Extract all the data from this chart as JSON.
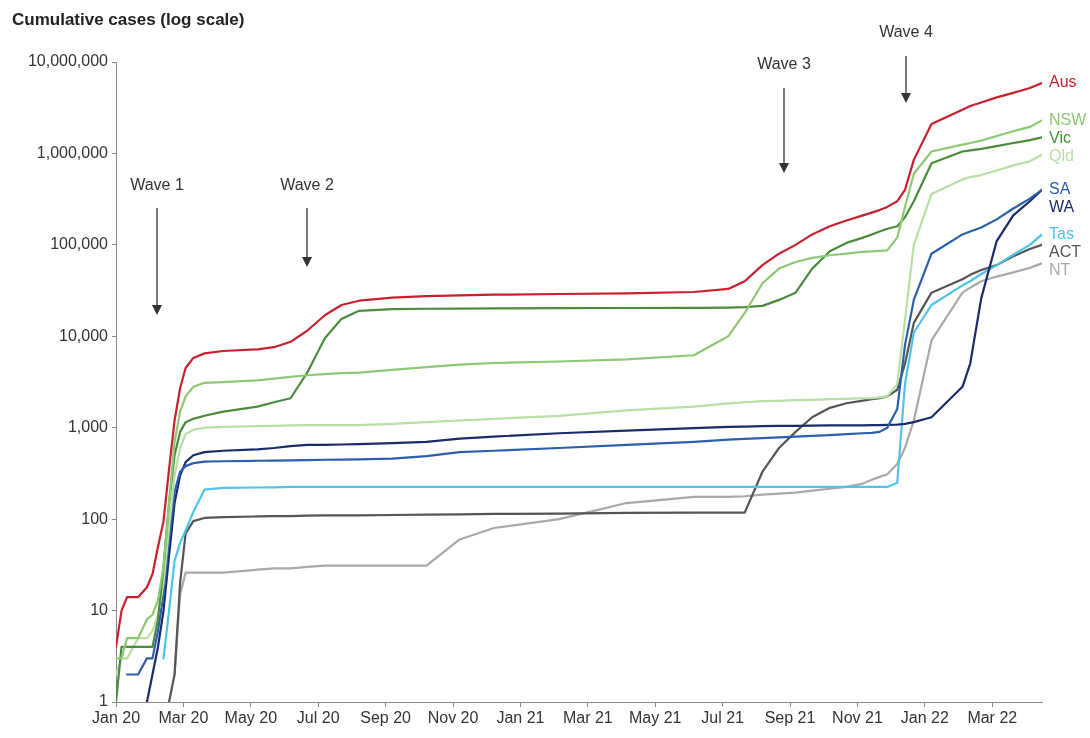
{
  "chart_data": {
    "type": "line",
    "title": "Cumulative cases (log scale)",
    "log": "y",
    "grid": false,
    "x": [
      "2020-01-25",
      "2020-01-30",
      "2020-02-04",
      "2020-02-14",
      "2020-02-22",
      "2020-02-27",
      "2020-03-03",
      "2020-03-08",
      "2020-03-13",
      "2020-03-18",
      "2020-03-23",
      "2020-03-28",
      "2020-04-04",
      "2020-04-14",
      "2020-05-01",
      "2020-06-01",
      "2020-06-16",
      "2020-07-01",
      "2020-07-16",
      "2020-08-01",
      "2020-08-16",
      "2020-09-01",
      "2020-10-01",
      "2020-11-01",
      "2020-12-01",
      "2021-01-01",
      "2021-03-01",
      "2021-05-01",
      "2021-07-01",
      "2021-08-01",
      "2021-08-16",
      "2021-09-01",
      "2021-09-16",
      "2021-10-01",
      "2021-10-16",
      "2021-11-01",
      "2021-11-16",
      "2021-12-01",
      "2021-12-09",
      "2021-12-16",
      "2021-12-23",
      "2022-01-01",
      "2022-01-08",
      "2022-01-16",
      "2022-02-01",
      "2022-03-01",
      "2022-03-08",
      "2022-03-18",
      "2022-04-01",
      "2022-04-16",
      "2022-05-01",
      "2022-05-12"
    ],
    "xlim": [
      "2020-01-25",
      "2022-05-12"
    ],
    "xticks": [
      {
        "value": "2020-01-25",
        "label": "Jan 20"
      },
      {
        "value": "2020-03-26",
        "label": "Mar 20"
      },
      {
        "value": "2020-05-26",
        "label": "May 20"
      },
      {
        "value": "2020-07-26",
        "label": "Jul 20"
      },
      {
        "value": "2020-09-25",
        "label": "Sep 20"
      },
      {
        "value": "2020-11-25",
        "label": "Nov 20"
      },
      {
        "value": "2021-01-25",
        "label": "Jan 21"
      },
      {
        "value": "2021-03-27",
        "label": "Mar 21"
      },
      {
        "value": "2021-05-27",
        "label": "May 21"
      },
      {
        "value": "2021-07-27",
        "label": "Jul 21"
      },
      {
        "value": "2021-09-26",
        "label": "Sep 21"
      },
      {
        "value": "2021-11-26",
        "label": "Nov 21"
      },
      {
        "value": "2022-01-26",
        "label": "Jan 22"
      },
      {
        "value": "2022-03-28",
        "label": "Mar 22"
      }
    ],
    "ylim": [
      1,
      10000000
    ],
    "yticks": [
      1,
      10,
      100,
      {
        "value": 1000,
        "label": "1,000"
      },
      {
        "value": 10000,
        "label": "10,000"
      },
      {
        "value": 100000,
        "label": "100,000"
      },
      {
        "value": 1000000,
        "label": "1,000,000"
      },
      {
        "value": 10000000,
        "label": "10,000,000"
      }
    ],
    "series": [
      {
        "name": "Aus",
        "color": "#c8202f",
        "values": [
          4,
          10,
          14,
          14,
          18,
          25,
          50,
          95,
          350,
          1200,
          2700,
          4500,
          5800,
          6500,
          6900,
          7200,
          7600,
          8700,
          11500,
          17000,
          22000,
          24500,
          26500,
          27500,
          28000,
          28500,
          29000,
          29500,
          30500,
          33000,
          40000,
          60000,
          80000,
          100000,
          130000,
          160000,
          185000,
          210000,
          225000,
          240000,
          260000,
          300000,
          400000,
          850000,
          2100000,
          3000000,
          3300000,
          3600000,
          4100000,
          4600000,
          5200000,
          5900000
        ]
      },
      {
        "name": "NSW",
        "color": "#8dc875",
        "values": [
          3,
          3,
          5,
          5,
          8,
          9,
          13,
          30,
          150,
          700,
          1500,
          2200,
          2800,
          3100,
          3150,
          3300,
          3450,
          3600,
          3750,
          3850,
          3950,
          4000,
          4300,
          4600,
          4900,
          5100,
          5300,
          5600,
          6200,
          10000,
          18000,
          38000,
          55000,
          65000,
          72000,
          77000,
          80000,
          84000,
          85000,
          86000,
          87000,
          120000,
          260000,
          600000,
          1050000,
          1250000,
          1300000,
          1380000,
          1550000,
          1750000,
          1950000,
          2300000
        ]
      },
      {
        "name": "Vic",
        "color": "#4a8c3c",
        "values": [
          1,
          4,
          4,
          4,
          4,
          4,
          8,
          30,
          150,
          500,
          900,
          1150,
          1250,
          1350,
          1500,
          1700,
          1900,
          2100,
          4000,
          9500,
          15500,
          19000,
          19800,
          20000,
          20100,
          20200,
          20300,
          20400,
          20500,
          20600,
          20800,
          21500,
          25000,
          30000,
          55000,
          85000,
          105000,
          120000,
          130000,
          140000,
          150000,
          160000,
          200000,
          300000,
          780000,
          1050000,
          1080000,
          1120000,
          1200000,
          1300000,
          1400000,
          1500000
        ]
      },
      {
        "name": "Qld",
        "color": "#b9dfa5",
        "values": [
          2,
          3,
          3,
          5,
          5,
          6,
          9,
          20,
          80,
          300,
          600,
          850,
          950,
          1000,
          1020,
          1040,
          1050,
          1060,
          1065,
          1070,
          1070,
          1070,
          1100,
          1150,
          1200,
          1250,
          1350,
          1550,
          1700,
          1850,
          1900,
          1950,
          1970,
          2000,
          2020,
          2050,
          2070,
          2100,
          2100,
          2150,
          2200,
          3000,
          15000,
          100000,
          360000,
          520000,
          550000,
          580000,
          650000,
          740000,
          820000,
          970000
        ]
      },
      {
        "name": "SA",
        "color": "#2b5fad",
        "values": [
          null,
          null,
          2,
          2,
          3,
          3,
          6,
          15,
          60,
          200,
          330,
          380,
          410,
          425,
          430,
          435,
          437,
          440,
          443,
          446,
          448,
          450,
          460,
          490,
          540,
          560,
          600,
          650,
          700,
          740,
          755,
          770,
          785,
          800,
          815,
          830,
          850,
          870,
          880,
          900,
          1000,
          1600,
          8000,
          25000,
          80000,
          130000,
          140000,
          155000,
          190000,
          250000,
          320000,
          400000
        ]
      },
      {
        "name": "WA",
        "color": "#1b2a6b",
        "values": [
          null,
          null,
          null,
          null,
          1,
          2,
          4,
          10,
          40,
          150,
          300,
          420,
          500,
          540,
          560,
          580,
          600,
          630,
          650,
          650,
          655,
          660,
          680,
          700,
          760,
          800,
          870,
          930,
          990,
          1020,
          1030,
          1040,
          1045,
          1050,
          1055,
          1060,
          1060,
          1060,
          1065,
          1070,
          1075,
          1080,
          1100,
          1150,
          1300,
          2800,
          5000,
          26000,
          110000,
          210000,
          300000,
          400000
        ]
      },
      {
        "name": "Tas",
        "color": "#4fc3e8",
        "values": [
          null,
          null,
          null,
          null,
          null,
          null,
          null,
          3,
          10,
          35,
          55,
          75,
          120,
          210,
          220,
          222,
          223,
          225,
          225,
          225,
          225,
          225,
          225,
          225,
          225,
          225,
          225,
          225,
          225,
          225,
          225,
          225,
          225,
          225,
          225,
          225,
          225,
          225,
          225,
          225,
          225,
          250,
          3000,
          11000,
          22000,
          36000,
          40000,
          48000,
          60000,
          78000,
          100000,
          130000
        ]
      },
      {
        "name": "ACT",
        "color": "#555555",
        "values": [
          null,
          null,
          null,
          null,
          null,
          null,
          null,
          null,
          1,
          2,
          20,
          70,
          95,
          103,
          105,
          107,
          108,
          108,
          109,
          110,
          110,
          110,
          111,
          112,
          113,
          114,
          115,
          117,
          118,
          118,
          118,
          330,
          600,
          900,
          1300,
          1650,
          1850,
          1980,
          2050,
          2100,
          2200,
          2600,
          5000,
          14000,
          30000,
          42000,
          47000,
          53000,
          60000,
          75000,
          90000,
          100000
        ]
      },
      {
        "name": "NT",
        "color": "#a9a9a9",
        "values": [
          null,
          null,
          null,
          null,
          null,
          null,
          null,
          null,
          null,
          2,
          15,
          26,
          26,
          26,
          26,
          28,
          29,
          29,
          30,
          31,
          31,
          31,
          31,
          31,
          60,
          80,
          100,
          150,
          175,
          175,
          178,
          185,
          190,
          195,
          205,
          215,
          225,
          245,
          270,
          290,
          310,
          400,
          600,
          1200,
          9000,
          30000,
          34000,
          40000,
          45000,
          50000,
          56000,
          63000
        ]
      }
    ],
    "annotations": [
      "Wave 1",
      "Wave 2",
      "Wave 3",
      "Wave 4"
    ]
  }
}
